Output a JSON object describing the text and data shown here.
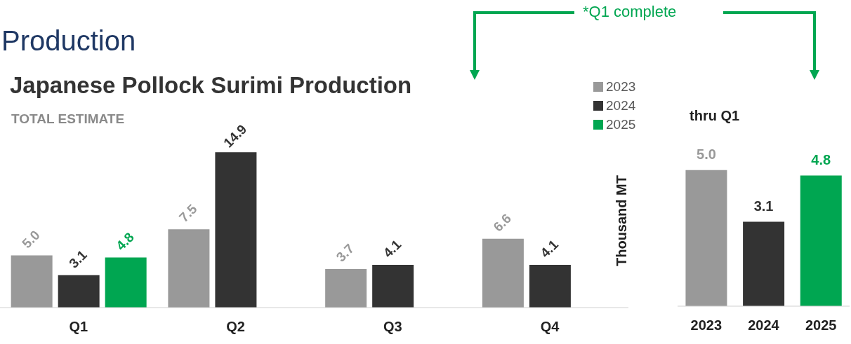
{
  "chart_data": [
    {
      "type": "bar",
      "title": "Japanese Pollock Surimi Production",
      "subtitle": "TOTAL ESTIMATE",
      "annotations": [
        "Production",
        "*Q1 complete"
      ],
      "categories": [
        "Q1",
        "Q2",
        "Q3",
        "Q4"
      ],
      "legend": "top right",
      "series": [
        {
          "name": "2023",
          "color": "#999999",
          "values": [
            5.0,
            7.5,
            3.7,
            6.6
          ],
          "value_labels": [
            "5.0",
            "7.5",
            "3.7",
            "6.6"
          ]
        },
        {
          "name": "2024",
          "color": "#333333",
          "values": [
            3.1,
            14.9,
            4.1,
            4.1
          ],
          "value_labels": [
            "3.1",
            "14.9",
            "4.1",
            "4.1"
          ]
        },
        {
          "name": "2025",
          "color": "#00a651",
          "values": [
            4.8,
            null,
            null,
            null
          ],
          "value_labels": [
            "4.8",
            null,
            null,
            null
          ]
        }
      ]
    },
    {
      "type": "bar",
      "title": "thru Q1",
      "ylabel": "Thousand MT",
      "categories": [
        "2023",
        "2024",
        "2025"
      ],
      "values": [
        5.0,
        3.1,
        4.8
      ],
      "colors": [
        "#999999",
        "#333333",
        "#00a651"
      ],
      "value_labels": [
        "5.0",
        "3.1",
        "4.8"
      ]
    }
  ]
}
